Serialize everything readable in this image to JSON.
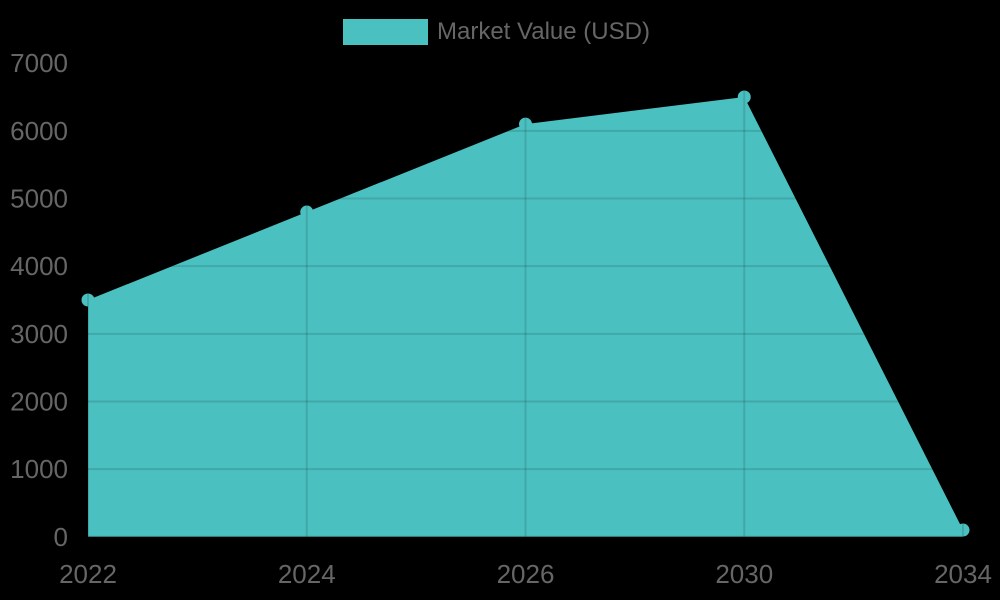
{
  "page": {
    "background": "#000000"
  },
  "legend": {
    "label": "Market Value (USD)"
  },
  "chart_data": {
    "type": "area",
    "title": "",
    "xlabel": "",
    "ylabel": "",
    "categories": [
      "2022",
      "2024",
      "2026",
      "2030",
      "2034"
    ],
    "series": [
      {
        "name": "Market Value (USD)",
        "values": [
          3500,
          4800,
          6100,
          6500,
          100
        ]
      }
    ],
    "ylim": [
      0,
      7000
    ],
    "yticks": [
      0,
      1000,
      2000,
      3000,
      4000,
      5000,
      6000,
      7000
    ],
    "grid": true,
    "legend_position": "top-center",
    "point_radius": 6.5,
    "colors": {
      "series_fill": "#4BC0C0",
      "tick_text": "#666666",
      "legend_text": "#666666",
      "grid_over_fill": "rgba(0,0,0,0.12)",
      "background": "#000000"
    }
  }
}
